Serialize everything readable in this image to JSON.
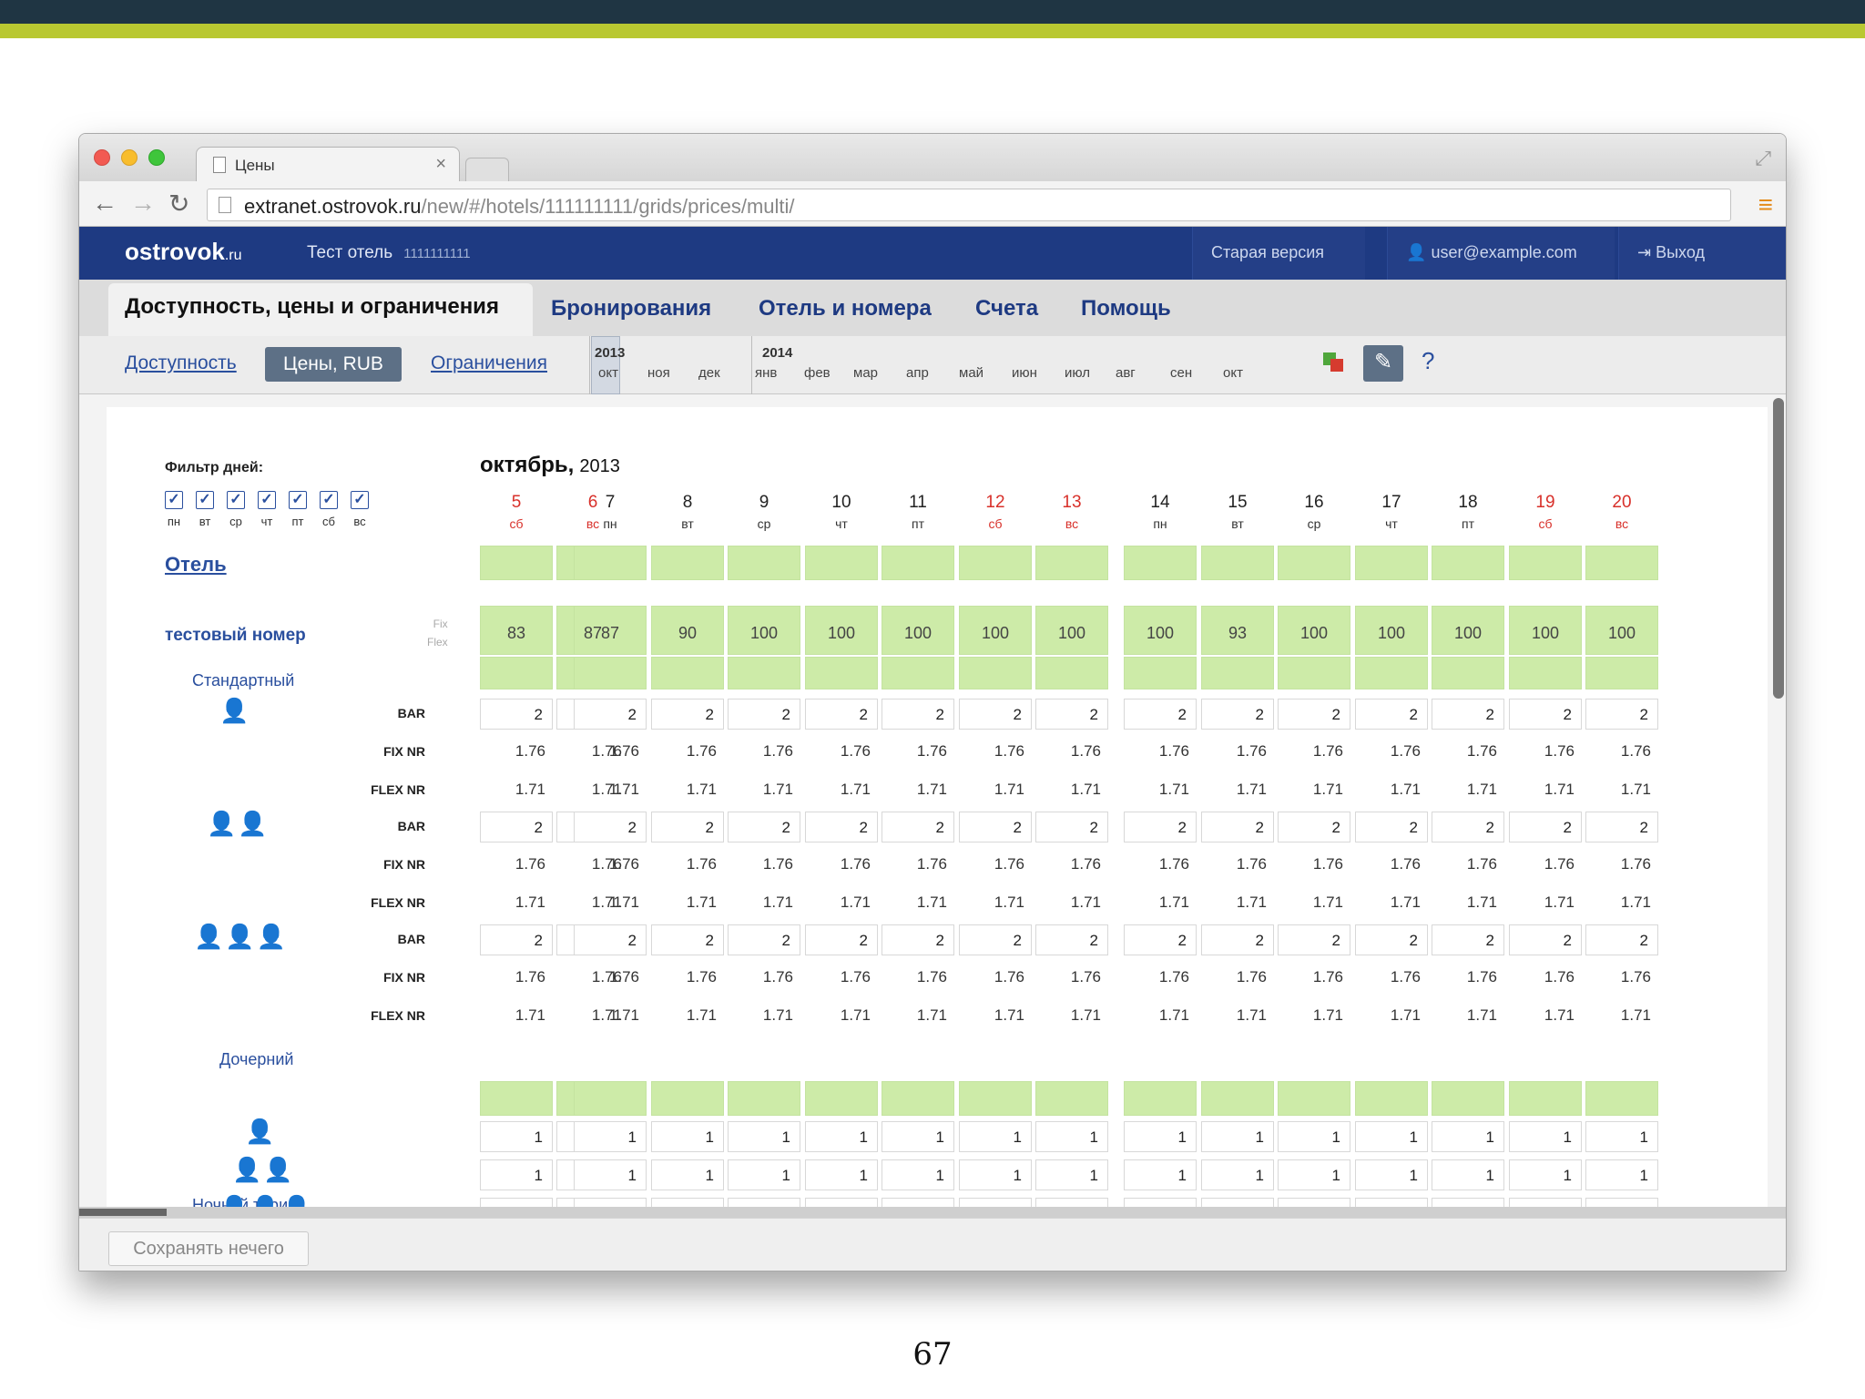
{
  "browser": {
    "tab_title": "Цены",
    "url_host": "extranet.ostrovok.ru",
    "url_path": "/new/#/hotels/111111111/grids/prices/multi/"
  },
  "header": {
    "logo": "ostrovok",
    "logo_suffix": ".ru",
    "hotel_name": "Тест отель",
    "hotel_id": "1111111111",
    "old_version": "Старая версия",
    "user": "user@example.com",
    "exit": "Выход"
  },
  "main_nav": [
    "Доступность, цены и ограничения",
    "Бронирования",
    "Отель и номера",
    "Счета",
    "Помощь"
  ],
  "sub_nav": {
    "availability": "Доступность",
    "prices": "Цены, RUB",
    "restrictions": "Ограничения"
  },
  "timeline": {
    "year1": "2013",
    "year2": "2014",
    "months": [
      "окт",
      "ноя",
      "дек",
      "янв",
      "фев",
      "мар",
      "апр",
      "май",
      "июн",
      "июл",
      "авг",
      "сен",
      "окт"
    ],
    "selected_index": 0
  },
  "filter": {
    "label": "Фильтр дней:",
    "days": [
      "пн",
      "вт",
      "ср",
      "чт",
      "пт",
      "сб",
      "вс"
    ],
    "check_mark": "✓"
  },
  "grid": {
    "month_title": "октябрь,",
    "month_year": "2013",
    "dates": [
      {
        "num": "5",
        "wd": "сб",
        "weekend": true
      },
      {
        "num": "6",
        "wd": "вс",
        "weekend": true
      },
      {
        "num": "7",
        "wd": "пн",
        "weekend": false
      },
      {
        "num": "8",
        "wd": "вт",
        "weekend": false
      },
      {
        "num": "9",
        "wd": "ср",
        "weekend": false
      },
      {
        "num": "10",
        "wd": "чт",
        "weekend": false
      },
      {
        "num": "11",
        "wd": "пт",
        "weekend": false
      },
      {
        "num": "12",
        "wd": "сб",
        "weekend": true
      },
      {
        "num": "13",
        "wd": "вс",
        "weekend": true
      },
      {
        "num": "14",
        "wd": "пн",
        "weekend": false
      },
      {
        "num": "15",
        "wd": "вт",
        "weekend": false
      },
      {
        "num": "16",
        "wd": "ср",
        "weekend": false
      },
      {
        "num": "17",
        "wd": "чт",
        "weekend": false
      },
      {
        "num": "18",
        "wd": "пт",
        "weekend": false
      },
      {
        "num": "19",
        "wd": "сб",
        "weekend": true
      },
      {
        "num": "20",
        "wd": "вс",
        "weekend": true
      }
    ],
    "hotel_label": "Отель",
    "room_label": "тестовый номер",
    "fix_label": "Fix",
    "flex_label": "Flex",
    "availability": [
      "83",
      "87",
      "87",
      "90",
      "100",
      "100",
      "100",
      "100",
      "100",
      "100",
      "93",
      "100",
      "100",
      "100",
      "100",
      "100"
    ],
    "rate_standard": "Стандартный",
    "rate_child": "Дочерний",
    "night_rate": "Ночной тариф",
    "row_labels": {
      "bar": "BAR",
      "fix_nr": "FIX NR",
      "flex_nr": "FLEX NR"
    },
    "bar_value": "2",
    "fix_nr_value": "1.76",
    "flex_nr_value": "1.71",
    "child_value": "1",
    "guest_icons": [
      "👤",
      "👤👤",
      "👤👤👤"
    ]
  },
  "footer": {
    "save_button": "Сохранять нечего"
  },
  "slide": {
    "page_number": "67"
  },
  "colors": {
    "header_bg": "#1e3a82",
    "avail_green": "#cdeba8",
    "weekend_red": "#d8302a",
    "slide_top": "#1f3543",
    "slide_accent": "#b9c831"
  }
}
